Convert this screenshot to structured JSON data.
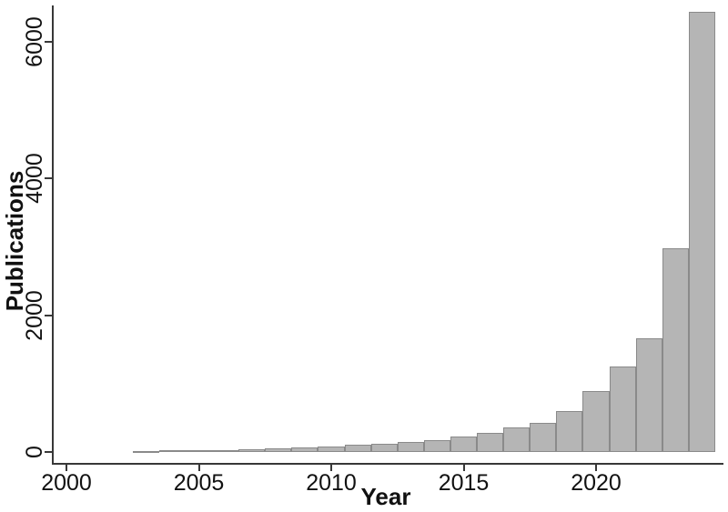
{
  "figure": {
    "background": "#ffffff"
  },
  "chart_data": {
    "type": "bar",
    "title": "",
    "xlabel": "Year",
    "ylabel": "Publications",
    "categories": [
      2003,
      2004,
      2005,
      2006,
      2007,
      2008,
      2009,
      2010,
      2011,
      2012,
      2013,
      2014,
      2015,
      2016,
      2017,
      2018,
      2019,
      2020,
      2021,
      2022,
      2023,
      2024
    ],
    "values": [
      20,
      22,
      25,
      30,
      40,
      55,
      70,
      85,
      100,
      120,
      140,
      170,
      230,
      285,
      355,
      420,
      600,
      890,
      1250,
      1660,
      2980,
      6430
    ],
    "x_ticks": [
      2000,
      2005,
      2010,
      2015,
      2020
    ],
    "y_ticks": [
      0,
      2000,
      4000,
      6000
    ],
    "xlim": [
      2000,
      2024.6
    ],
    "ylim": [
      0,
      6500
    ],
    "grid": false,
    "legend": null,
    "bar_fill_color": "#b5b5b5",
    "bar_border_color": "#8a8a8a",
    "axis_color": "#383838",
    "text_color": "#111111"
  }
}
